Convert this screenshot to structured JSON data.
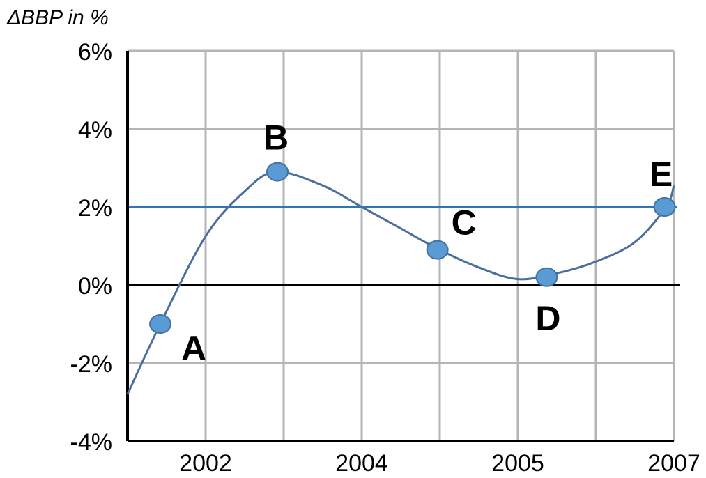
{
  "chart_data": {
    "type": "line",
    "title": "",
    "ylabel": "ΔBBP in %",
    "xlabel": "",
    "ylim": [
      -4,
      6
    ],
    "x_range": [
      0,
      7
    ],
    "y_ticks": [
      "6%",
      "4%",
      "2%",
      "0%",
      "-2%",
      "-4%"
    ],
    "y_tick_values": [
      6,
      4,
      2,
      0,
      -2,
      -4
    ],
    "x_tick_labels": [
      {
        "text": "2002",
        "x": 1
      },
      {
        "text": "2004",
        "x": 3
      },
      {
        "text": "2005",
        "x": 5
      },
      {
        "text": "2007",
        "x": 7
      }
    ],
    "grid": true,
    "reference_line": {
      "y": 2,
      "color": "#2e75b6"
    },
    "zero_line": {
      "y": 0,
      "color": "#000000"
    },
    "series": [
      {
        "color": "#4a6f9e",
        "curve": [
          {
            "x": 0.0,
            "y": -2.8
          },
          {
            "x": 0.42,
            "y": -1.0
          },
          {
            "x": 1.0,
            "y": 1.25
          },
          {
            "x": 1.5,
            "y": 2.4
          },
          {
            "x": 1.9,
            "y": 2.9
          },
          {
            "x": 2.5,
            "y": 2.55
          },
          {
            "x": 3.0,
            "y": 2.0
          },
          {
            "x": 3.5,
            "y": 1.45
          },
          {
            "x": 4.0,
            "y": 0.9
          },
          {
            "x": 4.5,
            "y": 0.45
          },
          {
            "x": 5.0,
            "y": 0.15
          },
          {
            "x": 5.5,
            "y": 0.3
          },
          {
            "x": 6.0,
            "y": 0.6
          },
          {
            "x": 6.5,
            "y": 1.1
          },
          {
            "x": 6.9,
            "y": 2.0
          },
          {
            "x": 7.0,
            "y": 2.55
          }
        ]
      }
    ],
    "points": [
      {
        "label": "A",
        "x": 0.42,
        "y": -1.0
      },
      {
        "label": "B",
        "x": 1.92,
        "y": 2.9
      },
      {
        "label": "C",
        "x": 3.97,
        "y": 0.9
      },
      {
        "label": "D",
        "x": 5.37,
        "y": 0.2
      },
      {
        "label": "E",
        "x": 6.88,
        "y": 2.0
      }
    ],
    "colors": {
      "grid": "#b5b5b5",
      "axis": "#000000",
      "marker_fill": "#5b9bd5",
      "marker_stroke": "#41719c"
    }
  }
}
